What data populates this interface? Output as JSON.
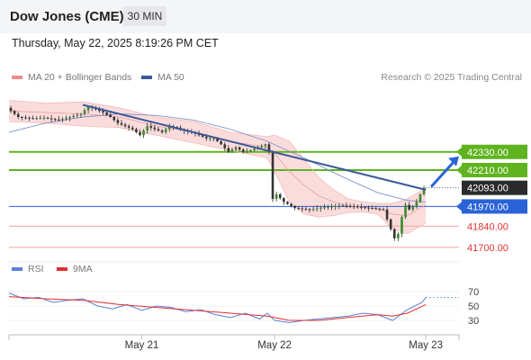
{
  "header": {
    "title": "Dow Jones (CME)",
    "timeframe": "30 MIN"
  },
  "datetime": "Thursday, May 22, 2025 8:19:26 PM CET",
  "legend": {
    "items": [
      {
        "label": "MA 20 + Bollinger Bands",
        "color": "#f28b8b"
      },
      {
        "label": "MA 50",
        "color": "#3a5a98"
      }
    ],
    "copyright": "Research © 2025 Trading Central"
  },
  "rsi_legend": {
    "items": [
      {
        "label": "RSI",
        "color": "#5b7fd6"
      },
      {
        "label": "9MA",
        "color": "#e03030"
      }
    ]
  },
  "colors": {
    "resistance": "#5fb31f",
    "support": "#f4a0a0",
    "pivot": "#2a63d8",
    "current": "#2b2b2b",
    "candle_up": "#3a8a2a",
    "candle_down": "#333333",
    "band_fill": "#fbdcdc",
    "ma50": "#8090c8",
    "trendline": "#3a5a98"
  },
  "chart_data": {
    "type": "candlestick",
    "ylim": [
      41640,
      42750
    ],
    "x_ticks": [
      "May 21",
      "May 22",
      "May 23"
    ],
    "levels": [
      {
        "value": 42330,
        "label": "42330.00",
        "kind": "resistance"
      },
      {
        "value": 42210,
        "label": "42210.00",
        "kind": "resistance"
      },
      {
        "value": 42093,
        "label": "42093.00",
        "kind": "current"
      },
      {
        "value": 41970,
        "label": "41970.00",
        "kind": "pivot"
      },
      {
        "value": 41840,
        "label": "41840.00",
        "kind": "support"
      },
      {
        "value": 41700,
        "label": "41700.00",
        "kind": "support"
      }
    ],
    "price_path": [
      [
        0,
        42620
      ],
      [
        3,
        42560
      ],
      [
        7,
        42550
      ],
      [
        10,
        42555
      ],
      [
        14,
        42540
      ],
      [
        17,
        42560
      ],
      [
        20,
        42580
      ],
      [
        22,
        42630
      ],
      [
        24,
        42610
      ],
      [
        26,
        42590
      ],
      [
        28,
        42560
      ],
      [
        30,
        42520
      ],
      [
        32,
        42500
      ],
      [
        34,
        42480
      ],
      [
        36,
        42440
      ],
      [
        38,
        42500
      ],
      [
        40,
        42480
      ],
      [
        42,
        42460
      ],
      [
        44,
        42500
      ],
      [
        46,
        42490
      ],
      [
        48,
        42470
      ],
      [
        50,
        42460
      ],
      [
        52,
        42440
      ],
      [
        54,
        42420
      ],
      [
        56,
        42420
      ],
      [
        58,
        42380
      ],
      [
        60,
        42330
      ],
      [
        62,
        42360
      ],
      [
        64,
        42330
      ],
      [
        66,
        42340
      ],
      [
        68,
        42360
      ],
      [
        70,
        42380
      ],
      [
        71,
        42330
      ],
      [
        72,
        42020
      ],
      [
        73,
        42050
      ],
      [
        75,
        42000
      ],
      [
        78,
        41960
      ],
      [
        82,
        41950
      ],
      [
        86,
        41965
      ],
      [
        90,
        41975
      ],
      [
        94,
        41970
      ],
      [
        98,
        41960
      ],
      [
        100,
        41955
      ],
      [
        102,
        41950
      ],
      [
        104,
        41820
      ],
      [
        105,
        41760
      ],
      [
        106,
        41790
      ],
      [
        107,
        41900
      ],
      [
        108,
        41980
      ],
      [
        109,
        41950
      ],
      [
        110,
        41970
      ],
      [
        111,
        42000
      ],
      [
        112,
        42050
      ],
      [
        113,
        42093
      ]
    ],
    "bollinger": {
      "upper": [
        [
          0,
          42670
        ],
        [
          10,
          42650
        ],
        [
          20,
          42660
        ],
        [
          30,
          42620
        ],
        [
          40,
          42560
        ],
        [
          50,
          42530
        ],
        [
          60,
          42460
        ],
        [
          70,
          42430
        ],
        [
          72,
          42440
        ],
        [
          76,
          42400
        ],
        [
          80,
          42280
        ],
        [
          84,
          42160
        ],
        [
          88,
          42080
        ],
        [
          92,
          42020
        ],
        [
          96,
          42000
        ],
        [
          100,
          41990
        ],
        [
          104,
          41990
        ],
        [
          108,
          42020
        ],
        [
          113,
          42090
        ]
      ],
      "middle": [
        [
          0,
          42600
        ],
        [
          10,
          42590
        ],
        [
          20,
          42580
        ],
        [
          30,
          42560
        ],
        [
          40,
          42500
        ],
        [
          50,
          42460
        ],
        [
          60,
          42400
        ],
        [
          70,
          42360
        ],
        [
          72,
          42320
        ],
        [
          76,
          42200
        ],
        [
          80,
          42110
        ],
        [
          84,
          42040
        ],
        [
          88,
          42000
        ],
        [
          92,
          41975
        ],
        [
          96,
          41965
        ],
        [
          100,
          41955
        ],
        [
          104,
          41920
        ],
        [
          108,
          41910
        ],
        [
          113,
          41980
        ]
      ],
      "lower": [
        [
          0,
          42530
        ],
        [
          10,
          42520
        ],
        [
          20,
          42500
        ],
        [
          30,
          42490
        ],
        [
          40,
          42440
        ],
        [
          50,
          42390
        ],
        [
          60,
          42340
        ],
        [
          70,
          42290
        ],
        [
          72,
          42200
        ],
        [
          76,
          42000
        ],
        [
          80,
          41920
        ],
        [
          84,
          41900
        ],
        [
          88,
          41910
        ],
        [
          92,
          41930
        ],
        [
          96,
          41935
        ],
        [
          100,
          41920
        ],
        [
          104,
          41820
        ],
        [
          108,
          41790
        ],
        [
          113,
          41860
        ]
      ]
    },
    "ma50": [
      [
        0,
        42460
      ],
      [
        10,
        42520
      ],
      [
        20,
        42560
      ],
      [
        30,
        42580
      ],
      [
        40,
        42570
      ],
      [
        50,
        42540
      ],
      [
        60,
        42480
      ],
      [
        70,
        42400
      ],
      [
        80,
        42290
      ],
      [
        90,
        42170
      ],
      [
        100,
        42060
      ],
      [
        108,
        42010
      ],
      [
        113,
        42000
      ]
    ],
    "trendline": {
      "from": [
        20,
        42640
      ],
      "to": [
        113,
        42080
      ]
    },
    "projection": {
      "from": [
        113,
        42100
      ],
      "to": [
        122,
        42300
      ]
    },
    "rsi": {
      "ylim": [
        10,
        90
      ],
      "ticks": [
        70,
        50,
        30
      ],
      "values": [
        [
          0,
          68
        ],
        [
          4,
          60
        ],
        [
          8,
          62
        ],
        [
          12,
          55
        ],
        [
          16,
          58
        ],
        [
          20,
          60
        ],
        [
          24,
          50
        ],
        [
          28,
          46
        ],
        [
          32,
          52
        ],
        [
          36,
          44
        ],
        [
          40,
          50
        ],
        [
          44,
          48
        ],
        [
          48,
          42
        ],
        [
          52,
          45
        ],
        [
          56,
          38
        ],
        [
          60,
          34
        ],
        [
          64,
          40
        ],
        [
          68,
          32
        ],
        [
          70,
          40
        ],
        [
          72,
          30
        ],
        [
          76,
          27
        ],
        [
          80,
          30
        ],
        [
          84,
          32
        ],
        [
          88,
          34
        ],
        [
          92,
          36
        ],
        [
          96,
          40
        ],
        [
          100,
          38
        ],
        [
          104,
          30
        ],
        [
          108,
          45
        ],
        [
          112,
          55
        ],
        [
          113,
          62
        ]
      ],
      "ma9": [
        [
          0,
          63
        ],
        [
          10,
          60
        ],
        [
          20,
          58
        ],
        [
          30,
          52
        ],
        [
          40,
          48
        ],
        [
          50,
          44
        ],
        [
          60,
          40
        ],
        [
          70,
          36
        ],
        [
          76,
          30
        ],
        [
          84,
          30
        ],
        [
          92,
          34
        ],
        [
          100,
          38
        ],
        [
          104,
          36
        ],
        [
          108,
          40
        ],
        [
          113,
          52
        ]
      ]
    }
  }
}
